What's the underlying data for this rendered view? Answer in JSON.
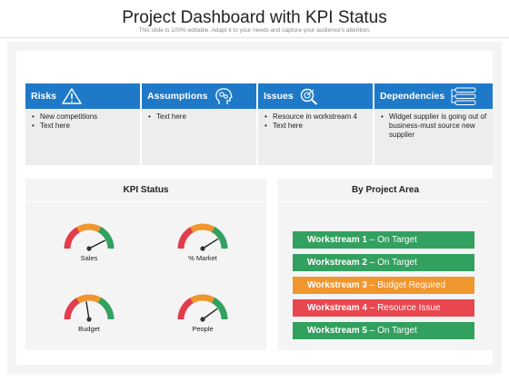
{
  "title": "Project Dashboard with KPI Status",
  "subtitle": "This slide is 100% editable. Adapt it to your needs and capture your audience's attention.",
  "categories": [
    {
      "label": "Risks",
      "icon": "warning-icon",
      "items": [
        "New competitions",
        "Text here"
      ]
    },
    {
      "label": "Assumptions",
      "icon": "head-gears-icon",
      "items": [
        "Text here"
      ]
    },
    {
      "label": "Issues",
      "icon": "magnifier-target-icon",
      "items": [
        "Resource in workstream 4",
        "Text here"
      ]
    },
    {
      "label": "Dependencies",
      "icon": "linked-list-icon",
      "items": [
        "Widget supplier is going out of business-must source new supplier"
      ]
    }
  ],
  "kpi": {
    "title": "KPI Status",
    "gauges": [
      {
        "label": "Sales",
        "level": 0.85
      },
      {
        "label": "% Market",
        "level": 0.82
      },
      {
        "label": "Budget",
        "level": 0.45
      },
      {
        "label": "People",
        "level": 0.8
      }
    ],
    "gauge_colors": {
      "red": "#e23c4d",
      "orange": "#f0962e",
      "green": "#32a05f"
    }
  },
  "project_area": {
    "title": "By Project Area",
    "workstreams": [
      {
        "name": "Workstream 1",
        "status": "– On Target",
        "color": "#32a05f"
      },
      {
        "name": "Workstream 2",
        "status": "– On Target",
        "color": "#32a05f"
      },
      {
        "name": "Workstream 3",
        "status": "– Budget Required",
        "color": "#f0962e"
      },
      {
        "name": "Workstream 4",
        "status": "– Resource Issue",
        "color": "#e9474f"
      },
      {
        "name": "Workstream 5",
        "status": "– On Target",
        "color": "#32a05f"
      }
    ]
  }
}
